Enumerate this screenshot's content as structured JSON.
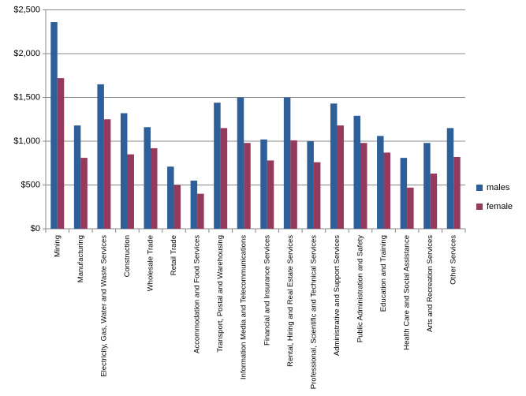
{
  "chart_data": {
    "type": "bar",
    "categories": [
      "Mining",
      "Manufacturing",
      "Electricity, Gas, Water and Waste Services",
      "Construction",
      "Wholesale Trade",
      "Retail Trade",
      "Accommodation and Food Services",
      "Transport, Postal and Warehousing",
      "Information Media and Telecommunications",
      "Financial and Insurance Services",
      "Rental, Hiring and Real Estate Services",
      "Professional, Scientific and Technical Services",
      "Administrative and Support Services",
      "Public Administration and Safety",
      "Education and Training",
      "Health Care and Social Assistance",
      "Arts and Recreation Services",
      "Other Services"
    ],
    "series": [
      {
        "name": "males",
        "color": "#2f5f98",
        "values": [
          2360,
          1180,
          1650,
          1320,
          1160,
          710,
          550,
          1440,
          1500,
          1020,
          1500,
          1000,
          1430,
          1290,
          1060,
          810,
          980,
          1150
        ]
      },
      {
        "name": "female",
        "color": "#943a5c",
        "values": [
          1720,
          810,
          1250,
          850,
          920,
          500,
          400,
          1150,
          980,
          780,
          1010,
          760,
          1180,
          980,
          870,
          470,
          630,
          820
        ]
      }
    ],
    "ylim": [
      0,
      2500
    ],
    "yticks": [
      {
        "value": 0,
        "label": "$0"
      },
      {
        "value": 500,
        "label": "$500"
      },
      {
        "value": 1000,
        "label": "$1,000"
      },
      {
        "value": 1500,
        "label": "$1,500"
      },
      {
        "value": 2000,
        "label": "$2,000"
      },
      {
        "value": 2500,
        "label": "$2,500"
      }
    ],
    "grid": true,
    "legend": "right"
  }
}
